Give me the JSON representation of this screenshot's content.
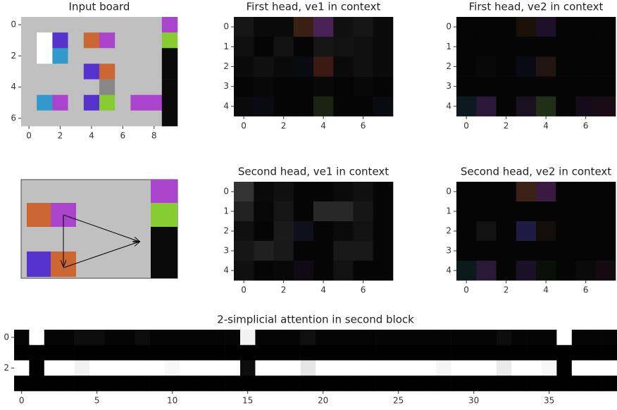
{
  "chart_data": [
    {
      "type": "image",
      "title": "Input board",
      "xlim": [
        -0.5,
        9.5
      ],
      "ylim": [
        6.5,
        -0.5
      ],
      "xticks": [
        0,
        2,
        4,
        6,
        8
      ],
      "yticks": [
        0,
        2,
        4,
        6
      ],
      "cells": [
        [
          "#c0c0c0",
          "#c0c0c0",
          "#c0c0c0",
          "#c0c0c0",
          "#c0c0c0",
          "#c0c0c0",
          "#c0c0c0",
          "#c0c0c0",
          "#c0c0c0",
          "#aa44cc"
        ],
        [
          "#c0c0c0",
          "#ffffff",
          "#5533cc",
          "#c0c0c0",
          "#cc6633",
          "#aa44cc",
          "#c0c0c0",
          "#c0c0c0",
          "#c0c0c0",
          "#88cc33"
        ],
        [
          "#c0c0c0",
          "#ffffff",
          "#3399cc",
          "#c0c0c0",
          "#c0c0c0",
          "#c0c0c0",
          "#c0c0c0",
          "#c0c0c0",
          "#c0c0c0",
          "#0a0a0a"
        ],
        [
          "#c0c0c0",
          "#c0c0c0",
          "#c0c0c0",
          "#c0c0c0",
          "#5533cc",
          "#cc6633",
          "#c0c0c0",
          "#c0c0c0",
          "#c0c0c0",
          "#0a0a0a"
        ],
        [
          "#c0c0c0",
          "#c0c0c0",
          "#c0c0c0",
          "#c0c0c0",
          "#c0c0c0",
          "#888888",
          "#c0c0c0",
          "#c0c0c0",
          "#c0c0c0",
          "#0a0a0a"
        ],
        [
          "#c0c0c0",
          "#3399cc",
          "#aa44cc",
          "#c0c0c0",
          "#5533cc",
          "#88cc33",
          "#c0c0c0",
          "#aa44cc",
          "#aa44cc",
          "#0a0a0a"
        ],
        [
          "#c0c0c0",
          "#c0c0c0",
          "#c0c0c0",
          "#c0c0c0",
          "#c0c0c0",
          "#c0c0c0",
          "#c0c0c0",
          "#c0c0c0",
          "#c0c0c0",
          "#0a0a0a"
        ]
      ]
    },
    {
      "type": "image",
      "title": "First head, ve1 in context",
      "xlim": [
        -0.5,
        7.5
      ],
      "ylim": [
        4.5,
        -0.5
      ],
      "xticks": [
        0,
        2,
        4,
        6
      ],
      "yticks": [
        0,
        1,
        2,
        3,
        4
      ],
      "cells": [
        [
          "#151515",
          "#0a0a0a",
          "#0a0a0a",
          "#3a1f15",
          "#4a2255",
          "#101010",
          "#151515",
          "#0a0a0a"
        ],
        [
          "#101010",
          "#050505",
          "#121212",
          "#050505",
          "#151515",
          "#121212",
          "#101010",
          "#0a0a0a"
        ],
        [
          "#0a0a0a",
          "#101010",
          "#0a0a0a",
          "#0a0a12",
          "#3a1a12",
          "#0a0a0a",
          "#101010",
          "#0a0a0a"
        ],
        [
          "#050505",
          "#080808",
          "#050505",
          "#050505",
          "#080808",
          "#050505",
          "#080808",
          "#050505"
        ],
        [
          "#0a0a0a",
          "#0a0a12",
          "#050505",
          "#050505",
          "#1a2410",
          "#050505",
          "#050505",
          "#0a0a12"
        ]
      ]
    },
    {
      "type": "image",
      "title": "First head, ve2 in context",
      "xlim": [
        -0.5,
        7.5
      ],
      "ylim": [
        4.5,
        -0.5
      ],
      "xticks": [
        0,
        2,
        4,
        6
      ],
      "yticks": [
        0,
        1,
        2,
        3,
        4
      ],
      "cells": [
        [
          "#050505",
          "#050505",
          "#050505",
          "#1a1008",
          "#1e1028",
          "#050505",
          "#050505",
          "#050505"
        ],
        [
          "#050505",
          "#050505",
          "#050505",
          "#050505",
          "#050505",
          "#050505",
          "#050505",
          "#050505"
        ],
        [
          "#050505",
          "#080808",
          "#050505",
          "#0a0a14",
          "#201510",
          "#050505",
          "#050505",
          "#050505"
        ],
        [
          "#050505",
          "#050505",
          "#050505",
          "#050505",
          "#050505",
          "#050505",
          "#050505",
          "#050505"
        ],
        [
          "#0a1a1e",
          "#2a1838",
          "#050505",
          "#1a1020",
          "#203018",
          "#050505",
          "#140c1a",
          "#1a0c14"
        ]
      ]
    },
    {
      "type": "image",
      "title": "Second head, ve1 in context",
      "xlim": [
        -0.5,
        7.5
      ],
      "ylim": [
        4.5,
        -0.5
      ],
      "xticks": [
        0,
        2,
        4,
        6
      ],
      "yticks": [
        0,
        1,
        2,
        3,
        4
      ],
      "cells": [
        [
          "#333333",
          "#0a0a0a",
          "#101010",
          "#050505",
          "#050505",
          "#0a0a0a",
          "#101010",
          "#050505"
        ],
        [
          "#222222",
          "#080808",
          "#151515",
          "#050505",
          "#282828",
          "#282828",
          "#151515",
          "#050505"
        ],
        [
          "#101010",
          "#050505",
          "#1a1a1a",
          "#10101c",
          "#050505",
          "#0a0a0a",
          "#121212",
          "#050505"
        ],
        [
          "#151515",
          "#202020",
          "#181818",
          "#050505",
          "#050505",
          "#181818",
          "#181818",
          "#050505"
        ],
        [
          "#101010",
          "#050505",
          "#080808",
          "#100a14",
          "#050505",
          "#121212",
          "#050505",
          "#050505"
        ]
      ]
    },
    {
      "type": "image",
      "title": "Second head, ve2 in context",
      "xlim": [
        -0.5,
        7.5
      ],
      "ylim": [
        4.5,
        -0.5
      ],
      "xticks": [
        0,
        2,
        4,
        6
      ],
      "yticks": [
        0,
        1,
        2,
        3,
        4
      ],
      "cells": [
        [
          "#050505",
          "#050505",
          "#050505",
          "#3a2015",
          "#3a1a40",
          "#050505",
          "#050505",
          "#050505"
        ],
        [
          "#050505",
          "#050505",
          "#050505",
          "#050505",
          "#050505",
          "#050505",
          "#050505",
          "#050505"
        ],
        [
          "#050505",
          "#121212",
          "#050505",
          "#1e1a44",
          "#140e0a",
          "#050505",
          "#050505",
          "#050505"
        ],
        [
          "#050505",
          "#050505",
          "#050505",
          "#050505",
          "#050505",
          "#050505",
          "#050505",
          "#050505"
        ],
        [
          "#0a1a1a",
          "#2a1838",
          "#050505",
          "#1a1028",
          "#0a1008",
          "#050505",
          "#0a0a0a",
          "#140a10"
        ]
      ]
    },
    {
      "type": "heatmap",
      "title": "2-simplicial attention in second block",
      "colormap": "gray",
      "xlim": [
        -0.5,
        39.5
      ],
      "ylim": [
        3.5,
        -0.5
      ],
      "xticks": [
        0,
        5,
        10,
        15,
        20,
        25,
        30,
        35
      ],
      "yticks": [
        0,
        2
      ],
      "values": [
        [
          0.02,
          1,
          0.02,
          0.02,
          0.05,
          0.05,
          0.02,
          0.02,
          0.05,
          0.02,
          0.02,
          0.02,
          0.02,
          0.02,
          0.02,
          0.95,
          0.02,
          0.02,
          0.02,
          0.06,
          0.02,
          0.02,
          0.02,
          0.02,
          0.02,
          0.02,
          0.02,
          0.02,
          0.02,
          0.02,
          0.02,
          0.02,
          0.05,
          0.02,
          0.02,
          0.02,
          1,
          0.02,
          0.02,
          0.02
        ],
        [
          0,
          0,
          0,
          0,
          0,
          0,
          0,
          0,
          0,
          0,
          0,
          0,
          0,
          0,
          0,
          0,
          0,
          0,
          0,
          0,
          0,
          0,
          0,
          0,
          0,
          0,
          0,
          0,
          0,
          0,
          0,
          0,
          0,
          0,
          0,
          0,
          0,
          0,
          0,
          0
        ],
        [
          1,
          0,
          1,
          1,
          0.95,
          1,
          1,
          1,
          1,
          1,
          0.97,
          1,
          1,
          1,
          1,
          0.05,
          1,
          1,
          1,
          0.9,
          1,
          1,
          1,
          1,
          1,
          1,
          1,
          1,
          0.96,
          1,
          1,
          1,
          0.92,
          1,
          1,
          0.97,
          0,
          1,
          1,
          1
        ],
        [
          0,
          0,
          0,
          0,
          0,
          0,
          0,
          0,
          0,
          0,
          0,
          0,
          0,
          0,
          0,
          0,
          0,
          0,
          0,
          0,
          0,
          0,
          0,
          0,
          0,
          0,
          0,
          0,
          0,
          0,
          0,
          0,
          0,
          0,
          0,
          0,
          0,
          0,
          0,
          0
        ]
      ]
    }
  ]
}
